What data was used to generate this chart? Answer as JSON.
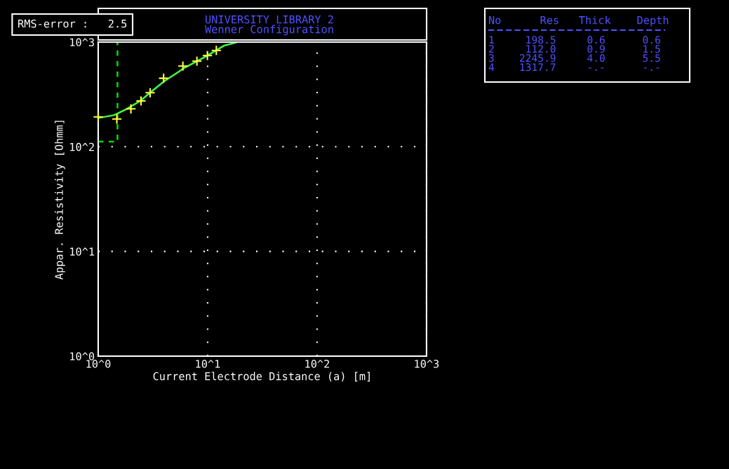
{
  "chart_data": {
    "type": "line",
    "title": "UNIVERSITY LIBRARY 2",
    "subtitle": "Wenner Configuration",
    "xlabel": "Current Electrode Distance (a) [m]",
    "ylabel": "Appar. Resistivity [Ohmm]",
    "log": "xy",
    "grid": true,
    "xlim": [
      1,
      1000
    ],
    "ylim": [
      1,
      1000
    ],
    "xticks": [
      {
        "value": 1,
        "label": "10^0"
      },
      {
        "value": 10,
        "label": "10^1"
      },
      {
        "value": 100,
        "label": "10^2"
      },
      {
        "value": 1000,
        "label": "10^3"
      }
    ],
    "yticks": [
      {
        "value": 1,
        "label": "10^0"
      },
      {
        "value": 10,
        "label": "10^1"
      },
      {
        "value": 100,
        "label": "10^2"
      },
      {
        "value": 1000,
        "label": "10^3"
      }
    ],
    "series": [
      {
        "type": "line",
        "color": "#00e000",
        "line_style": "dashed",
        "marker": "none",
        "x": [
          1.0,
          1.5,
          1.5
        ],
        "values": [
          112,
          112,
          1000
        ]
      },
      {
        "color": "#40ff40",
        "line_style": "solid",
        "marker": "none",
        "x": [
          1.0,
          1.38,
          1.48,
          1.8,
          2.42,
          2.95,
          3.96,
          6.17,
          9.61,
          14.2,
          18.2
        ],
        "values": [
          188,
          200,
          206,
          228,
          274,
          326,
          418,
          569,
          728,
          927,
          991
        ]
      },
      {
        "type": "scatter",
        "color": "#ffff40",
        "marker": "cross",
        "x": [
          1.0,
          1.48,
          1.99,
          2.46,
          2.98,
          3.96,
          5.94,
          7.98,
          9.95,
          12.0
        ],
        "values": [
          193,
          184,
          230,
          274,
          328,
          451,
          590,
          657,
          743,
          832
        ]
      }
    ],
    "annotations": [
      "RMS-error :   2.5",
      "No      Res   Thick    Depth",
      "1     198.5     0.6      0.6",
      "2     112.0     0.9      1.5",
      "3    2245.9     4.0      5.5",
      "4    1317.7     -.-      -.-"
    ]
  }
}
